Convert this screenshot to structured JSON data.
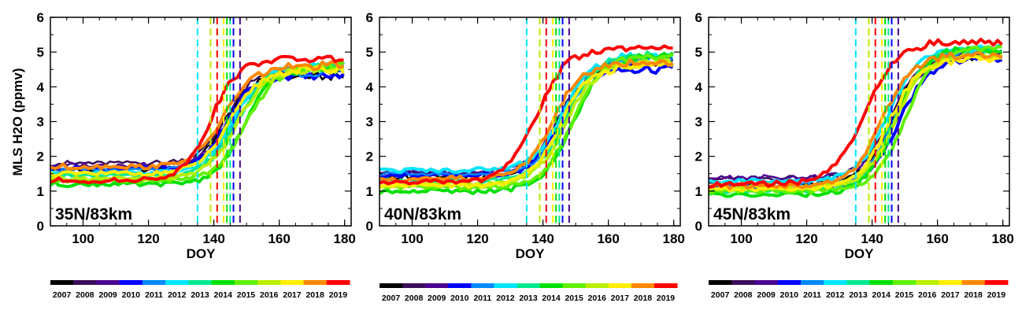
{
  "figure": {
    "ylabel": "MLS H2O (ppmv)"
  },
  "chart_data": [
    {
      "type": "line",
      "annotation": "35N/83km",
      "xlabel": "DOY",
      "ylabel": "MLS H2O (ppmv)",
      "xlim": [
        90,
        182
      ],
      "ylim": [
        0,
        6
      ],
      "xticks": [
        100,
        120,
        140,
        160,
        180
      ],
      "yticks": [
        0,
        1,
        2,
        3,
        4,
        5,
        6
      ],
      "series": [
        {
          "name": "2007",
          "color": "#000000",
          "low": 1.6,
          "high": 4.3,
          "mid": 143,
          "w": 11,
          "lw": 2.5
        },
        {
          "name": "2008",
          "color": "#3a0d5a",
          "low": 1.8,
          "high": 4.5,
          "mid": 144,
          "w": 11,
          "lw": 2.5
        },
        {
          "name": "2009",
          "color": "#4b0090",
          "low": 1.75,
          "high": 4.4,
          "mid": 145,
          "w": 11,
          "lw": 2.5
        },
        {
          "name": "2010",
          "color": "#0000ff",
          "low": 1.65,
          "high": 4.3,
          "mid": 144,
          "w": 10,
          "lw": 4
        },
        {
          "name": "2011",
          "color": "#0088ff",
          "low": 1.6,
          "high": 4.4,
          "mid": 146,
          "w": 11,
          "lw": 2.5
        },
        {
          "name": "2012",
          "color": "#00e5ff",
          "low": 1.5,
          "high": 4.6,
          "mid": 146,
          "w": 12,
          "lw": 4
        },
        {
          "name": "2013",
          "color": "#00e890",
          "low": 1.45,
          "high": 4.6,
          "mid": 147,
          "w": 12,
          "lw": 4
        },
        {
          "name": "2014",
          "color": "#00e000",
          "low": 1.2,
          "high": 4.5,
          "mid": 149,
          "w": 11,
          "lw": 4
        },
        {
          "name": "2015",
          "color": "#60f000",
          "low": 1.3,
          "high": 4.6,
          "mid": 150,
          "w": 12,
          "lw": 4
        },
        {
          "name": "2016",
          "color": "#b8ee00",
          "low": 1.35,
          "high": 4.5,
          "mid": 147,
          "w": 12,
          "lw": 4
        },
        {
          "name": "2017",
          "color": "#ffee00",
          "low": 1.5,
          "high": 4.5,
          "mid": 145,
          "w": 12,
          "lw": 4
        },
        {
          "name": "2018",
          "color": "#ff8800",
          "low": 1.7,
          "high": 4.6,
          "mid": 143,
          "w": 12,
          "lw": 4
        },
        {
          "name": "2019",
          "color": "#ff0000",
          "low": 1.3,
          "high": 4.8,
          "mid": 139,
          "w": 11,
          "lw": 4
        }
      ],
      "vlines": [
        {
          "x": 135,
          "color": "#00e5ff"
        },
        {
          "x": 139,
          "color": "#b8ee00"
        },
        {
          "x": 141,
          "color": "#ff0000"
        },
        {
          "x": 143,
          "color": "#ffee00"
        },
        {
          "x": 144,
          "color": "#00e000"
        },
        {
          "x": 145,
          "color": "#00e890"
        },
        {
          "x": 146,
          "color": "#0000ff"
        },
        {
          "x": 148,
          "color": "#4b0090"
        }
      ]
    },
    {
      "type": "line",
      "annotation": "40N/83km",
      "xlabel": "DOY",
      "ylabel": "",
      "xlim": [
        90,
        182
      ],
      "ylim": [
        0,
        6
      ],
      "xticks": [
        100,
        120,
        140,
        160,
        180
      ],
      "yticks": [
        0,
        1,
        2,
        3,
        4,
        5,
        6
      ],
      "series": [
        {
          "name": "2007",
          "color": "#000000",
          "low": 1.4,
          "high": 4.7,
          "mid": 145,
          "w": 12,
          "lw": 2.5
        },
        {
          "name": "2008",
          "color": "#3a0d5a",
          "low": 1.5,
          "high": 4.8,
          "mid": 145,
          "w": 12,
          "lw": 2.5
        },
        {
          "name": "2009",
          "color": "#4b0090",
          "low": 1.55,
          "high": 4.7,
          "mid": 146,
          "w": 12,
          "lw": 2.5
        },
        {
          "name": "2010",
          "color": "#0000ff",
          "low": 1.45,
          "high": 4.5,
          "mid": 145,
          "w": 11,
          "lw": 4
        },
        {
          "name": "2011",
          "color": "#0088ff",
          "low": 1.5,
          "high": 4.8,
          "mid": 147,
          "w": 12,
          "lw": 2.5
        },
        {
          "name": "2012",
          "color": "#00e5ff",
          "low": 1.6,
          "high": 4.9,
          "mid": 146,
          "w": 12,
          "lw": 4
        },
        {
          "name": "2013",
          "color": "#00e890",
          "low": 1.3,
          "high": 4.9,
          "mid": 147,
          "w": 12,
          "lw": 4
        },
        {
          "name": "2014",
          "color": "#00e000",
          "low": 1.0,
          "high": 4.9,
          "mid": 149,
          "w": 12,
          "lw": 4
        },
        {
          "name": "2015",
          "color": "#60f000",
          "low": 1.1,
          "high": 4.9,
          "mid": 149,
          "w": 12,
          "lw": 4
        },
        {
          "name": "2016",
          "color": "#b8ee00",
          "low": 1.2,
          "high": 4.7,
          "mid": 147,
          "w": 12,
          "lw": 4
        },
        {
          "name": "2017",
          "color": "#ffee00",
          "low": 1.15,
          "high": 4.6,
          "mid": 145,
          "w": 12,
          "lw": 4
        },
        {
          "name": "2018",
          "color": "#ff8800",
          "low": 1.35,
          "high": 4.7,
          "mid": 143,
          "w": 12,
          "lw": 4
        },
        {
          "name": "2019",
          "color": "#ff0000",
          "low": 1.25,
          "high": 5.1,
          "mid": 138,
          "w": 12,
          "lw": 4
        }
      ],
      "vlines": [
        {
          "x": 135,
          "color": "#00e5ff"
        },
        {
          "x": 139,
          "color": "#b8ee00"
        },
        {
          "x": 141,
          "color": "#ff0000"
        },
        {
          "x": 143,
          "color": "#ffee00"
        },
        {
          "x": 144,
          "color": "#00e000"
        },
        {
          "x": 145,
          "color": "#00e890"
        },
        {
          "x": 146,
          "color": "#0000ff"
        },
        {
          "x": 148,
          "color": "#4b0090"
        }
      ]
    },
    {
      "type": "line",
      "annotation": "45N/83km",
      "xlabel": "DOY",
      "ylabel": "",
      "xlim": [
        90,
        182
      ],
      "ylim": [
        0,
        6
      ],
      "xticks": [
        100,
        120,
        140,
        160,
        180
      ],
      "yticks": [
        0,
        1,
        2,
        3,
        4,
        5,
        6
      ],
      "series": [
        {
          "name": "2007",
          "color": "#000000",
          "low": 1.2,
          "high": 4.9,
          "mid": 146,
          "w": 12,
          "lw": 2.5
        },
        {
          "name": "2008",
          "color": "#3a0d5a",
          "low": 1.35,
          "high": 5.0,
          "mid": 146,
          "w": 12,
          "lw": 2.5
        },
        {
          "name": "2009",
          "color": "#4b0090",
          "low": 1.4,
          "high": 4.9,
          "mid": 147,
          "w": 12,
          "lw": 2.5
        },
        {
          "name": "2010",
          "color": "#0000ff",
          "low": 1.1,
          "high": 4.8,
          "mid": 148,
          "w": 12,
          "lw": 4
        },
        {
          "name": "2011",
          "color": "#0088ff",
          "low": 1.2,
          "high": 5.0,
          "mid": 147,
          "w": 12,
          "lw": 2.5
        },
        {
          "name": "2012",
          "color": "#00e5ff",
          "low": 1.3,
          "high": 5.1,
          "mid": 145,
          "w": 12,
          "lw": 4
        },
        {
          "name": "2013",
          "color": "#00e890",
          "low": 1.0,
          "high": 5.1,
          "mid": 147,
          "w": 12,
          "lw": 4
        },
        {
          "name": "2014",
          "color": "#00e000",
          "low": 0.9,
          "high": 5.1,
          "mid": 147,
          "w": 12,
          "lw": 4
        },
        {
          "name": "2015",
          "color": "#60f000",
          "low": 1.0,
          "high": 5.1,
          "mid": 150,
          "w": 12,
          "lw": 4
        },
        {
          "name": "2016",
          "color": "#b8ee00",
          "low": 1.1,
          "high": 4.9,
          "mid": 147,
          "w": 12,
          "lw": 4
        },
        {
          "name": "2017",
          "color": "#ffee00",
          "low": 1.05,
          "high": 4.8,
          "mid": 145,
          "w": 12,
          "lw": 4
        },
        {
          "name": "2018",
          "color": "#ff8800",
          "low": 1.15,
          "high": 4.9,
          "mid": 143,
          "w": 12,
          "lw": 4
        },
        {
          "name": "2019",
          "color": "#ff0000",
          "low": 1.2,
          "high": 5.3,
          "mid": 138,
          "w": 13,
          "lw": 4
        }
      ],
      "vlines": [
        {
          "x": 135,
          "color": "#00e5ff"
        },
        {
          "x": 139,
          "color": "#b8ee00"
        },
        {
          "x": 141,
          "color": "#ff0000"
        },
        {
          "x": 143,
          "color": "#ffee00"
        },
        {
          "x": 144,
          "color": "#00e000"
        },
        {
          "x": 145,
          "color": "#00e890"
        },
        {
          "x": 146,
          "color": "#0000ff"
        },
        {
          "x": 148,
          "color": "#4b0090"
        }
      ]
    }
  ],
  "colorbar": {
    "years": [
      "2007",
      "2008",
      "2009",
      "2010",
      "2011",
      "2012",
      "2013",
      "2014",
      "2015",
      "2016",
      "2017",
      "2018",
      "2019"
    ],
    "colors": [
      "#000000",
      "#3a0d5a",
      "#4b0090",
      "#0000ff",
      "#0088ff",
      "#00e5ff",
      "#00e890",
      "#00e000",
      "#60f000",
      "#b8ee00",
      "#ffee00",
      "#ff8800",
      "#ff0000"
    ]
  }
}
